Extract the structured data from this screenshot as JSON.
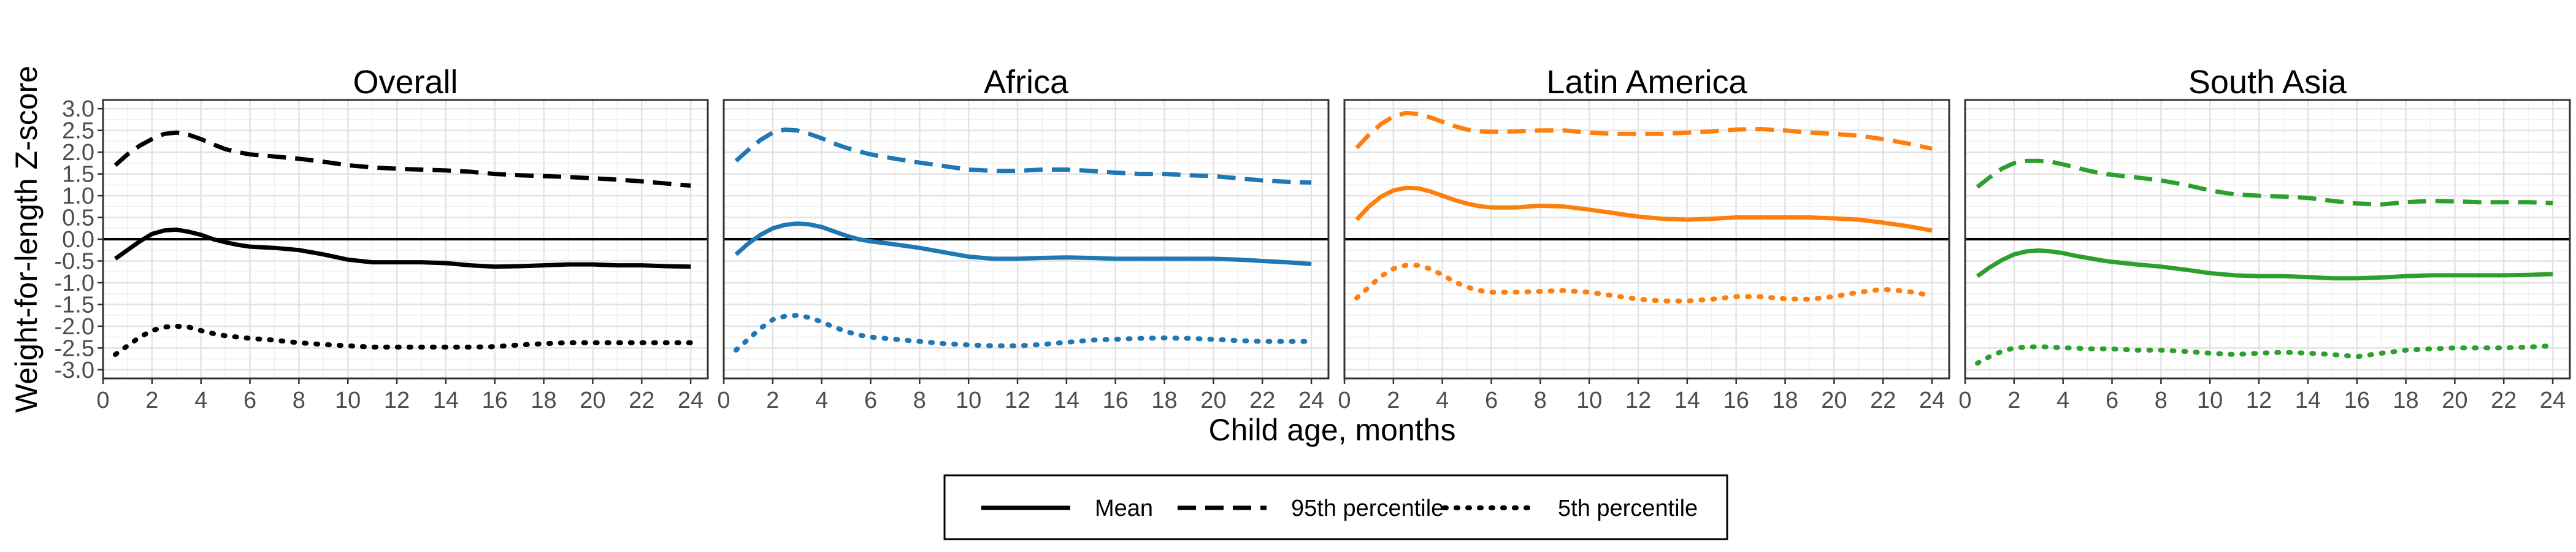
{
  "chart_data": [
    {
      "type": "line",
      "title": "Overall",
      "color": "#000000",
      "x": [
        0.5,
        1,
        1.5,
        2,
        2.5,
        3,
        3.5,
        4,
        4.5,
        5,
        5.5,
        6,
        7,
        8,
        9,
        10,
        11,
        12,
        13,
        14,
        15,
        16,
        17,
        18,
        19,
        20,
        21,
        22,
        23,
        24
      ],
      "series": [
        {
          "name": "Mean",
          "style": "solid",
          "values": [
            -0.45,
            -0.25,
            -0.05,
            0.12,
            0.2,
            0.22,
            0.17,
            0.1,
            0.0,
            -0.07,
            -0.13,
            -0.17,
            -0.2,
            -0.25,
            -0.35,
            -0.47,
            -0.53,
            -0.53,
            -0.53,
            -0.55,
            -0.6,
            -0.63,
            -0.62,
            -0.6,
            -0.58,
            -0.58,
            -0.6,
            -0.6,
            -0.62,
            -0.63
          ]
        },
        {
          "name": "95th percentile",
          "style": "dashed",
          "values": [
            1.7,
            1.95,
            2.15,
            2.3,
            2.42,
            2.45,
            2.4,
            2.3,
            2.18,
            2.07,
            2.0,
            1.95,
            1.9,
            1.85,
            1.78,
            1.7,
            1.65,
            1.62,
            1.6,
            1.58,
            1.55,
            1.5,
            1.47,
            1.45,
            1.43,
            1.4,
            1.37,
            1.33,
            1.28,
            1.23
          ]
        },
        {
          "name": "5th percentile",
          "style": "dotted",
          "values": [
            -2.65,
            -2.45,
            -2.25,
            -2.1,
            -2.02,
            -2.0,
            -2.02,
            -2.1,
            -2.17,
            -2.22,
            -2.25,
            -2.28,
            -2.32,
            -2.38,
            -2.42,
            -2.45,
            -2.48,
            -2.48,
            -2.48,
            -2.48,
            -2.48,
            -2.47,
            -2.43,
            -2.4,
            -2.38,
            -2.38,
            -2.38,
            -2.38,
            -2.38,
            -2.38
          ]
        }
      ]
    },
    {
      "type": "line",
      "title": "Africa",
      "color": "#1f77b4",
      "x": [
        0.5,
        1,
        1.5,
        2,
        2.5,
        3,
        3.5,
        4,
        4.5,
        5,
        5.5,
        6,
        7,
        8,
        9,
        10,
        11,
        12,
        13,
        14,
        15,
        16,
        17,
        18,
        19,
        20,
        21,
        22,
        23,
        24
      ],
      "series": [
        {
          "name": "Mean",
          "style": "solid",
          "values": [
            -0.35,
            -0.1,
            0.1,
            0.25,
            0.33,
            0.36,
            0.34,
            0.28,
            0.18,
            0.08,
            0.0,
            -0.05,
            -0.12,
            -0.2,
            -0.3,
            -0.4,
            -0.45,
            -0.45,
            -0.43,
            -0.42,
            -0.43,
            -0.45,
            -0.45,
            -0.45,
            -0.45,
            -0.45,
            -0.47,
            -0.5,
            -0.53,
            -0.57
          ]
        },
        {
          "name": "95th percentile",
          "style": "dashed",
          "values": [
            1.8,
            2.05,
            2.28,
            2.45,
            2.52,
            2.5,
            2.42,
            2.32,
            2.2,
            2.1,
            2.02,
            1.95,
            1.85,
            1.76,
            1.68,
            1.6,
            1.57,
            1.57,
            1.6,
            1.6,
            1.57,
            1.53,
            1.5,
            1.5,
            1.47,
            1.45,
            1.4,
            1.35,
            1.32,
            1.3
          ]
        },
        {
          "name": "5th percentile",
          "style": "dotted",
          "values": [
            -2.55,
            -2.3,
            -2.05,
            -1.85,
            -1.77,
            -1.75,
            -1.8,
            -1.9,
            -2.02,
            -2.12,
            -2.2,
            -2.25,
            -2.3,
            -2.35,
            -2.4,
            -2.43,
            -2.45,
            -2.45,
            -2.42,
            -2.37,
            -2.32,
            -2.3,
            -2.28,
            -2.27,
            -2.28,
            -2.3,
            -2.33,
            -2.35,
            -2.35,
            -2.35
          ]
        }
      ]
    },
    {
      "type": "line",
      "title": "Latin America",
      "color": "#ff7f0e",
      "x": [
        0.5,
        1,
        1.5,
        2,
        2.5,
        3,
        3.5,
        4,
        4.5,
        5,
        5.5,
        6,
        7,
        8,
        9,
        10,
        11,
        12,
        13,
        14,
        15,
        16,
        17,
        18,
        19,
        20,
        21,
        22,
        23,
        24
      ],
      "series": [
        {
          "name": "Mean",
          "style": "solid",
          "values": [
            0.45,
            0.75,
            0.98,
            1.12,
            1.18,
            1.17,
            1.1,
            1.0,
            0.9,
            0.82,
            0.76,
            0.73,
            0.73,
            0.77,
            0.75,
            0.68,
            0.6,
            0.52,
            0.47,
            0.45,
            0.47,
            0.5,
            0.5,
            0.5,
            0.5,
            0.48,
            0.45,
            0.38,
            0.3,
            0.2
          ]
        },
        {
          "name": "95th percentile",
          "style": "dashed",
          "values": [
            2.1,
            2.4,
            2.65,
            2.82,
            2.9,
            2.88,
            2.8,
            2.7,
            2.6,
            2.52,
            2.48,
            2.47,
            2.48,
            2.5,
            2.5,
            2.45,
            2.42,
            2.42,
            2.42,
            2.45,
            2.48,
            2.52,
            2.53,
            2.5,
            2.45,
            2.42,
            2.38,
            2.3,
            2.2,
            2.08
          ]
        },
        {
          "name": "5th percentile",
          "style": "dotted",
          "values": [
            -1.35,
            -1.1,
            -0.85,
            -0.68,
            -0.6,
            -0.6,
            -0.68,
            -0.82,
            -0.98,
            -1.1,
            -1.18,
            -1.22,
            -1.22,
            -1.2,
            -1.18,
            -1.22,
            -1.3,
            -1.38,
            -1.42,
            -1.42,
            -1.38,
            -1.32,
            -1.32,
            -1.37,
            -1.38,
            -1.32,
            -1.22,
            -1.15,
            -1.2,
            -1.3
          ]
        }
      ]
    },
    {
      "type": "line",
      "title": "South Asia",
      "color": "#2ca02c",
      "x": [
        0.5,
        1,
        1.5,
        2,
        2.5,
        3,
        3.5,
        4,
        4.5,
        5,
        5.5,
        6,
        7,
        8,
        9,
        10,
        11,
        12,
        13,
        14,
        15,
        16,
        17,
        18,
        19,
        20,
        21,
        22,
        23,
        24
      ],
      "series": [
        {
          "name": "Mean",
          "style": "solid",
          "values": [
            -0.85,
            -0.65,
            -0.48,
            -0.35,
            -0.28,
            -0.26,
            -0.28,
            -0.32,
            -0.38,
            -0.43,
            -0.48,
            -0.52,
            -0.58,
            -0.63,
            -0.7,
            -0.78,
            -0.83,
            -0.85,
            -0.85,
            -0.87,
            -0.9,
            -0.9,
            -0.88,
            -0.85,
            -0.83,
            -0.83,
            -0.83,
            -0.83,
            -0.82,
            -0.8
          ]
        },
        {
          "name": "95th percentile",
          "style": "dashed",
          "values": [
            1.2,
            1.42,
            1.62,
            1.75,
            1.8,
            1.8,
            1.78,
            1.72,
            1.65,
            1.58,
            1.52,
            1.48,
            1.42,
            1.35,
            1.25,
            1.12,
            1.03,
            1.0,
            0.98,
            0.95,
            0.88,
            0.82,
            0.8,
            0.85,
            0.88,
            0.87,
            0.85,
            0.85,
            0.85,
            0.83
          ]
        },
        {
          "name": "5th percentile",
          "style": "dotted",
          "values": [
            -2.85,
            -2.7,
            -2.58,
            -2.5,
            -2.48,
            -2.47,
            -2.48,
            -2.5,
            -2.5,
            -2.52,
            -2.52,
            -2.52,
            -2.55,
            -2.55,
            -2.58,
            -2.62,
            -2.65,
            -2.62,
            -2.6,
            -2.62,
            -2.65,
            -2.7,
            -2.62,
            -2.55,
            -2.52,
            -2.5,
            -2.5,
            -2.5,
            -2.48,
            -2.45
          ]
        }
      ]
    }
  ],
  "axes": {
    "xlabel": "Child age, months",
    "ylabel": "Weight-for-length Z-score",
    "xlim": [
      0,
      24.7
    ],
    "ylim": [
      -3.2,
      3.2
    ],
    "x_ticks": [
      "0",
      "2",
      "4",
      "6",
      "8",
      "10",
      "12",
      "14",
      "16",
      "18",
      "20",
      "22",
      "24"
    ],
    "y_ticks": [
      "-3.0",
      "-2.5",
      "-2.0",
      "-1.5",
      "-1.0",
      "-0.5",
      "0.0",
      "0.5",
      "1.0",
      "1.5",
      "2.0",
      "2.5",
      "3.0"
    ],
    "reference_line": 0,
    "grid": true
  },
  "legend": {
    "position": "bottom",
    "items": [
      {
        "label": "Mean",
        "style": "solid"
      },
      {
        "label": "95th percentile",
        "style": "dashed"
      },
      {
        "label": "5th percentile",
        "style": "dotted"
      }
    ]
  }
}
